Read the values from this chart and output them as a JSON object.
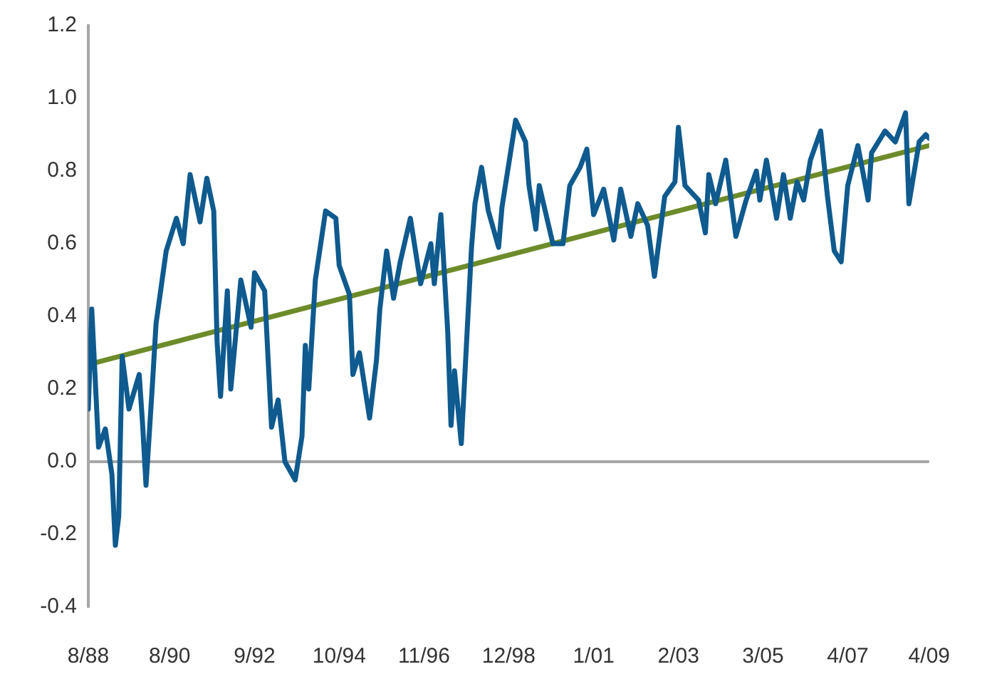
{
  "chart_data": {
    "type": "line",
    "xlim": [
      "1988-08",
      "2009-04"
    ],
    "xticks": [
      {
        "value": "1988-08",
        "label": "8/88"
      },
      {
        "value": "1990-08",
        "label": "8/90"
      },
      {
        "value": "1992-09",
        "label": "9/92"
      },
      {
        "value": "1994-10",
        "label": "10/94"
      },
      {
        "value": "1996-11",
        "label": "11/96"
      },
      {
        "value": "1998-12",
        "label": "12/98"
      },
      {
        "value": "2001-01",
        "label": "1/01"
      },
      {
        "value": "2003-02",
        "label": "2/03"
      },
      {
        "value": "2005-03",
        "label": "3/05"
      },
      {
        "value": "2007-04",
        "label": "4/07"
      },
      {
        "value": "2009-04",
        "label": "4/09"
      }
    ],
    "ylim": [
      -0.4,
      1.2
    ],
    "yticks": [
      {
        "value": -0.4,
        "label": "-0.4"
      },
      {
        "value": -0.2,
        "label": "-0.2"
      },
      {
        "value": 0,
        "label": "0.0"
      },
      {
        "value": 0.2,
        "label": "0.2"
      },
      {
        "value": 0.4,
        "label": "0.4"
      },
      {
        "value": 0.6,
        "label": "0.6"
      },
      {
        "value": 0.8,
        "label": "0.8"
      },
      {
        "value": 1,
        "label": "1.0"
      },
      {
        "value": 1.2,
        "label": "1.2"
      }
    ],
    "grid": false,
    "legend": false,
    "marker": "none",
    "line_style": "solid",
    "ref_lines": [
      {
        "axis": "y",
        "value": 0,
        "color": "#a6a6a6"
      }
    ],
    "series": [
      {
        "type": "line",
        "color": "#0f5a8e",
        "x": [
          "1988-08",
          "1988-09",
          "1988-11",
          "1989-01",
          "1989-03",
          "1989-04",
          "1989-05",
          "1989-06",
          "1989-08",
          "1989-11",
          "1989-12",
          "1990-01",
          "1990-03",
          "1990-04",
          "1990-07",
          "1990-10",
          "1990-12",
          "1991-02",
          "1991-05",
          "1991-07",
          "1991-09",
          "1991-10",
          "1991-11",
          "1992-01",
          "1992-02",
          "1992-05",
          "1992-08",
          "1992-09",
          "1992-12",
          "1993-02",
          "1993-04",
          "1993-06",
          "1993-09",
          "1993-11",
          "1993-12",
          "1994-01",
          "1994-03",
          "1994-06",
          "1994-09",
          "1994-10",
          "1995-01",
          "1995-02",
          "1995-04",
          "1995-07",
          "1995-09",
          "1995-10",
          "1995-12",
          "1996-02",
          "1996-04",
          "1996-07",
          "1996-10",
          "1997-01",
          "1997-02",
          "1997-04",
          "1997-06",
          "1997-07",
          "1997-08",
          "1997-10",
          "1998-01",
          "1998-02",
          "1998-04",
          "1998-06",
          "1998-09",
          "1998-10",
          "1999-02",
          "1999-05",
          "1999-06",
          "1999-08",
          "1999-09",
          "2000-01",
          "2000-04",
          "2000-06",
          "2000-09",
          "2000-11",
          "2001-01",
          "2001-04",
          "2001-07",
          "2001-09",
          "2001-12",
          "2002-02",
          "2002-05",
          "2002-07",
          "2002-10",
          "2003-01",
          "2003-02",
          "2003-04",
          "2003-08",
          "2003-10",
          "2003-11",
          "2004-01",
          "2004-04",
          "2004-07",
          "2004-10",
          "2005-01",
          "2005-02",
          "2005-04",
          "2005-07",
          "2005-09",
          "2005-11",
          "2006-01",
          "2006-03",
          "2006-05",
          "2006-08",
          "2006-10",
          "2006-12",
          "2007-02",
          "2007-04",
          "2007-07",
          "2007-10",
          "2007-11",
          "2008-03",
          "2008-06",
          "2008-09",
          "2008-10",
          "2009-01",
          "2009-03",
          "2009-04"
        ],
        "values": [
          0.145,
          0.42,
          0.04,
          0.09,
          -0.035,
          -0.23,
          -0.15,
          0.29,
          0.145,
          0.24,
          0.105,
          -0.065,
          0.22,
          0.38,
          0.58,
          0.67,
          0.6,
          0.79,
          0.66,
          0.78,
          0.69,
          0.33,
          0.18,
          0.47,
          0.2,
          0.5,
          0.37,
          0.52,
          0.47,
          0.095,
          0.17,
          0,
          -0.05,
          0.07,
          0.32,
          0.2,
          0.5,
          0.69,
          0.67,
          0.54,
          0.46,
          0.24,
          0.3,
          0.12,
          0.28,
          0.42,
          0.58,
          0.45,
          0.55,
          0.67,
          0.49,
          0.6,
          0.49,
          0.68,
          0.36,
          0.1,
          0.25,
          0.05,
          0.59,
          0.71,
          0.81,
          0.69,
          0.59,
          0.7,
          0.94,
          0.88,
          0.76,
          0.64,
          0.76,
          0.6,
          0.6,
          0.76,
          0.81,
          0.86,
          0.68,
          0.75,
          0.61,
          0.75,
          0.62,
          0.71,
          0.65,
          0.51,
          0.73,
          0.77,
          0.92,
          0.76,
          0.72,
          0.63,
          0.79,
          0.71,
          0.83,
          0.62,
          0.72,
          0.8,
          0.72,
          0.83,
          0.67,
          0.79,
          0.67,
          0.77,
          0.72,
          0.83,
          0.91,
          0.73,
          0.58,
          0.55,
          0.76,
          0.87,
          0.72,
          0.85,
          0.91,
          0.88,
          0.96,
          0.71,
          0.88,
          0.9,
          0.89
        ]
      },
      {
        "type": "line",
        "color": "#6e8b2a",
        "x": [
          "1988-09",
          "2009-04"
        ],
        "values": [
          0.27,
          0.87
        ]
      }
    ]
  }
}
